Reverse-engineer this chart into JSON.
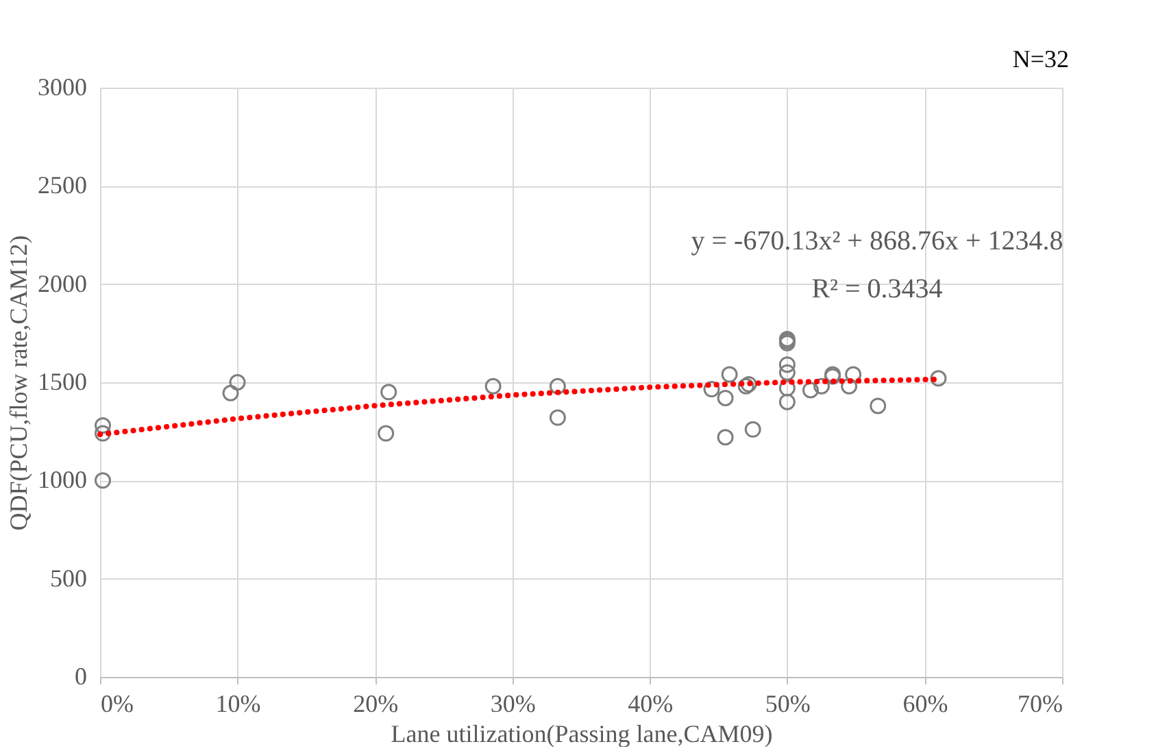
{
  "chart_data": {
    "type": "scatter",
    "xlabel": "Lane utilization(Passing lane,CAM09)",
    "ylabel": "QDF(PCU,flow rate,CAM12)",
    "annotations": [
      "N=32",
      "y = -670.13x² + 868.76x + 1234.8",
      "R² = 0.3434"
    ],
    "xlim": [
      0,
      0.7
    ],
    "xticks": [
      {
        "value": 0,
        "label": "0%"
      },
      {
        "value": 0.1,
        "label": "10%"
      },
      {
        "value": 0.2,
        "label": "20%"
      },
      {
        "value": 0.3,
        "label": "30%"
      },
      {
        "value": 0.4,
        "label": "40%"
      },
      {
        "value": 0.5,
        "label": "50%"
      },
      {
        "value": 0.6,
        "label": "60%"
      },
      {
        "value": 0.7,
        "label": "70%"
      }
    ],
    "ylim": [
      0,
      3000
    ],
    "yticks": [
      0,
      500,
      1000,
      1500,
      2000,
      2500,
      3000
    ],
    "grid": true,
    "series": [
      {
        "color": "#7f7f7f",
        "marker": "circle",
        "x": [
          0.002,
          0.002,
          0.002,
          0.095,
          0.1,
          0.208,
          0.21,
          0.286,
          0.333,
          0.333,
          0.445,
          0.455,
          0.455,
          0.458,
          0.47,
          0.472,
          0.475,
          0.5,
          0.5,
          0.5,
          0.5,
          0.5,
          0.5,
          0.5,
          0.517,
          0.525,
          0.533,
          0.533,
          0.545,
          0.548,
          0.566,
          0.61
        ],
        "values": [
          1280,
          1240,
          1000,
          1445,
          1500,
          1240,
          1450,
          1480,
          1480,
          1320,
          1465,
          1220,
          1420,
          1540,
          1480,
          1490,
          1260,
          1720,
          1710,
          1700,
          1590,
          1550,
          1470,
          1400,
          1460,
          1480,
          1540,
          1530,
          1480,
          1540,
          1380,
          1520
        ]
      },
      {
        "type": "line",
        "color": "#ff0000",
        "line_style": "dotted",
        "marker": "none",
        "x": [
          0,
          0.1,
          0.2,
          0.3,
          0.4,
          0.5,
          0.61
        ],
        "values": [
          1235,
          1315,
          1381,
          1435,
          1475,
          1501,
          1515
        ]
      }
    ]
  }
}
